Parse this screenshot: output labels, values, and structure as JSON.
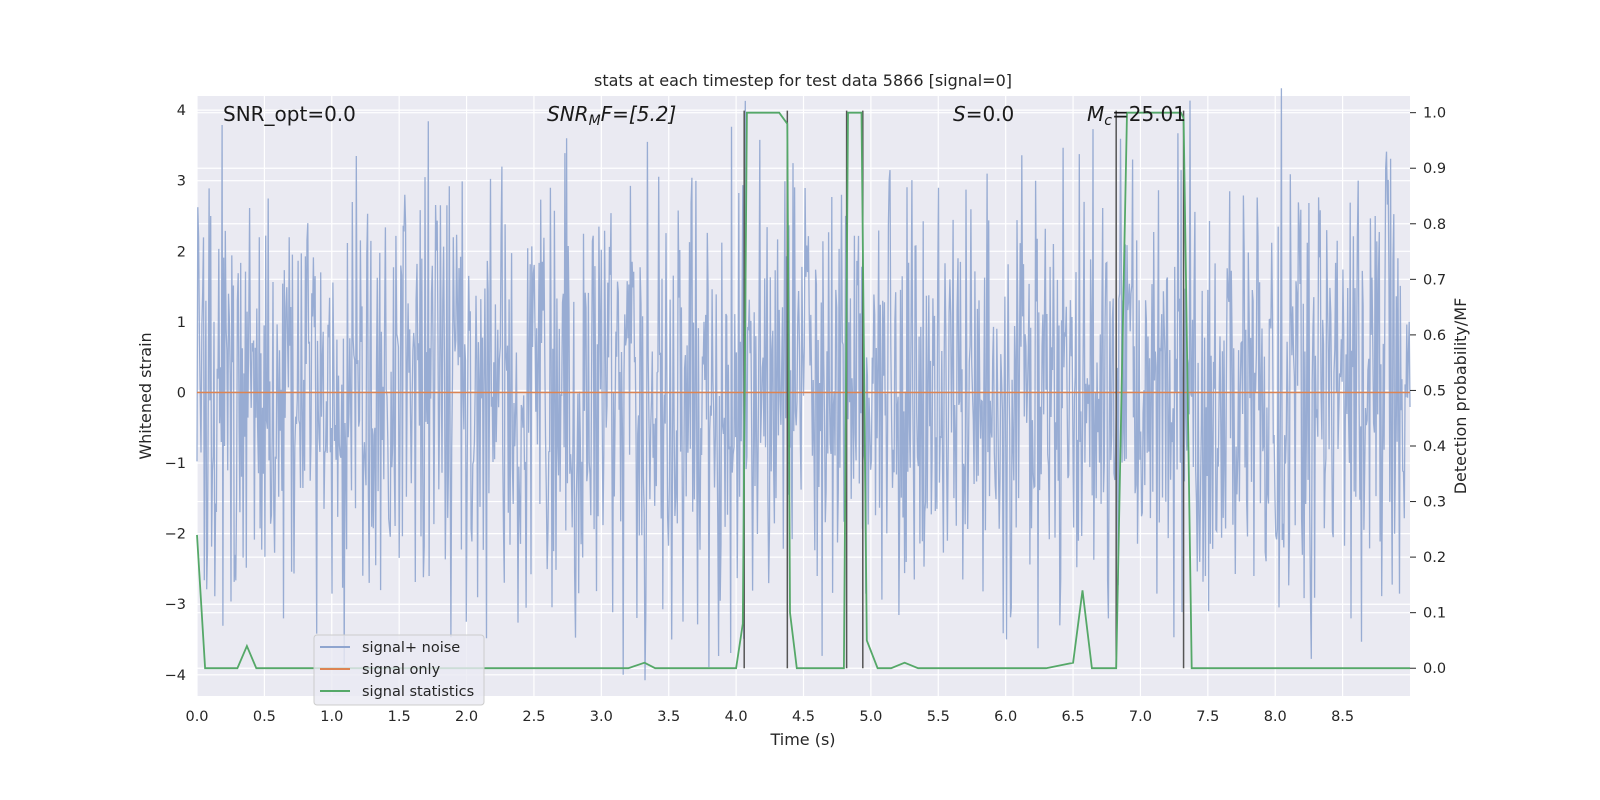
{
  "chart_data": {
    "type": "line",
    "title": "stats at each timestep for test data 5866 [signal=0]",
    "xlabel": "Time (s)",
    "ylabel": "Whitened strain",
    "y2label": "Detection probability/MF",
    "xlim": [
      0.0,
      9.0
    ],
    "ylim": [
      -4.3,
      4.2
    ],
    "y2lim": [
      -0.05,
      1.03
    ],
    "x_ticks": [
      "0.0",
      "0.5",
      "1.0",
      "1.5",
      "2.0",
      "2.5",
      "3.0",
      "3.5",
      "4.0",
      "4.5",
      "5.0",
      "5.5",
      "6.0",
      "6.5",
      "7.0",
      "7.5",
      "8.0",
      "8.5"
    ],
    "y_ticks": [
      "4",
      "3",
      "2",
      "1",
      "0",
      "−1",
      "−2",
      "−3",
      "−4"
    ],
    "y2_ticks": [
      "1.0",
      "0.9",
      "0.8",
      "0.7",
      "0.6",
      "0.5",
      "0.4",
      "0.3",
      "0.2",
      "0.1",
      "0.0"
    ],
    "grid": true,
    "background_color": "#eaeaf2",
    "annotations": {
      "snr_opt": "SNR_opt=0.0",
      "snr_mf_prefix": "SNR",
      "snr_mf_sub": "M",
      "snr_mf_suffix": "F=[5.2]",
      "s_sym": "S",
      "s_val": "=0.0",
      "mc_sym": "M",
      "mc_sub": "c",
      "mc_val": "=25.01"
    },
    "legend": {
      "placement": "lower-left",
      "entries": [
        "signal+ noise",
        "signal only",
        "signal statistics"
      ]
    },
    "series": [
      {
        "name": "signal+ noise",
        "color": "#8fa5cf",
        "note_amplitude_envelope": 1.5,
        "peak_values": [
          2.5,
          2.2,
          2.4,
          3.35,
          2.8,
          2.2,
          3.2,
          2.9,
          2.35,
          3.55,
          3.0,
          2.85,
          3.25,
          2.8,
          3.15,
          2.9,
          3.1,
          3.0,
          2.7,
          3.3,
          3.15,
          2.85,
          2.35,
          2.3
        ],
        "trough_values": [
          -2.3,
          -3.2,
          -2.85,
          -2.8,
          -2.6,
          -2.9,
          -3.05,
          -2.55,
          -4.0,
          -3.5,
          -2.95,
          -2.7,
          -2.6,
          -2.85,
          -2.65,
          -2.65,
          -3.05,
          -3.3,
          -3.2,
          -2.85,
          -2.6,
          -2.6
        ]
      },
      {
        "name": "signal only",
        "color": "#dd8452",
        "x": [
          0.0,
          9.0
        ],
        "y": [
          0.0,
          0.0
        ]
      },
      {
        "name": "signal statistics",
        "color": "#55a868",
        "x": [
          0.0,
          0.06,
          0.15,
          0.3,
          0.37,
          0.44,
          0.5,
          0.7,
          1.0,
          1.5,
          2.0,
          2.5,
          3.0,
          3.2,
          3.32,
          3.4,
          3.7,
          4.0,
          4.05,
          4.08,
          4.13,
          4.32,
          4.38,
          4.4,
          4.45,
          4.5,
          4.65,
          4.8,
          4.83,
          4.87,
          4.93,
          4.97,
          5.05,
          5.15,
          5.25,
          5.35,
          5.6,
          6.0,
          6.3,
          6.5,
          6.57,
          6.64,
          6.75,
          6.82,
          6.9,
          7.0,
          7.3,
          7.32,
          7.38,
          7.5,
          8.0,
          8.5,
          9.0
        ],
        "y": [
          0.24,
          0.0,
          0.0,
          0.0,
          0.04,
          0.0,
          0.0,
          0.0,
          0.0,
          0.0,
          0.0,
          0.0,
          0.0,
          0.0,
          0.01,
          0.0,
          0.0,
          0.0,
          0.08,
          1.0,
          1.0,
          1.0,
          0.98,
          0.1,
          0.0,
          0.0,
          0.0,
          0.0,
          1.0,
          1.0,
          1.0,
          0.05,
          0.0,
          0.0,
          0.01,
          0.0,
          0.0,
          0.0,
          0.0,
          0.01,
          0.14,
          0.0,
          0.0,
          0.0,
          1.0,
          1.0,
          1.0,
          0.99,
          0.0,
          0.0,
          0.0,
          0.0,
          0.0
        ]
      }
    ],
    "event_markers_x": [
      4.06,
      4.38,
      4.82,
      4.94,
      6.82,
      7.32
    ],
    "event_marker_color": "#555555"
  }
}
